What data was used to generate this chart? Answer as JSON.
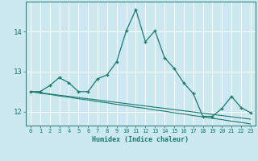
{
  "xlabel": "Humidex (Indice chaleur)",
  "bg_color": "#cce8f0",
  "grid_color": "#ffffff",
  "line_color": "#1a7a6e",
  "x_values": [
    0,
    1,
    2,
    3,
    4,
    5,
    6,
    7,
    8,
    9,
    10,
    11,
    12,
    13,
    14,
    15,
    16,
    17,
    18,
    19,
    20,
    21,
    22,
    23
  ],
  "y_main": [
    12.5,
    12.5,
    12.65,
    12.85,
    12.72,
    12.5,
    12.5,
    12.82,
    12.92,
    13.25,
    14.02,
    14.55,
    13.75,
    14.02,
    13.35,
    13.08,
    12.72,
    12.45,
    11.88,
    11.88,
    12.08,
    12.38,
    12.1,
    11.97
  ],
  "y_trend1": [
    12.5,
    12.47,
    12.44,
    12.41,
    12.38,
    12.35,
    12.32,
    12.29,
    12.26,
    12.23,
    12.2,
    12.17,
    12.14,
    12.11,
    12.08,
    12.05,
    12.02,
    11.99,
    11.96,
    11.93,
    11.9,
    11.87,
    11.84,
    11.81
  ],
  "y_trend2": [
    12.5,
    12.46,
    12.43,
    12.39,
    12.36,
    12.32,
    12.29,
    12.25,
    12.22,
    12.18,
    12.15,
    12.11,
    12.08,
    12.04,
    12.01,
    11.97,
    11.94,
    11.9,
    11.87,
    11.83,
    11.8,
    11.76,
    11.73,
    11.69
  ],
  "ylim": [
    11.65,
    14.75
  ],
  "yticks": [
    12,
    13,
    14
  ],
  "xticks": [
    0,
    1,
    2,
    3,
    4,
    5,
    6,
    7,
    8,
    9,
    10,
    11,
    12,
    13,
    14,
    15,
    16,
    17,
    18,
    19,
    20,
    21,
    22,
    23
  ]
}
